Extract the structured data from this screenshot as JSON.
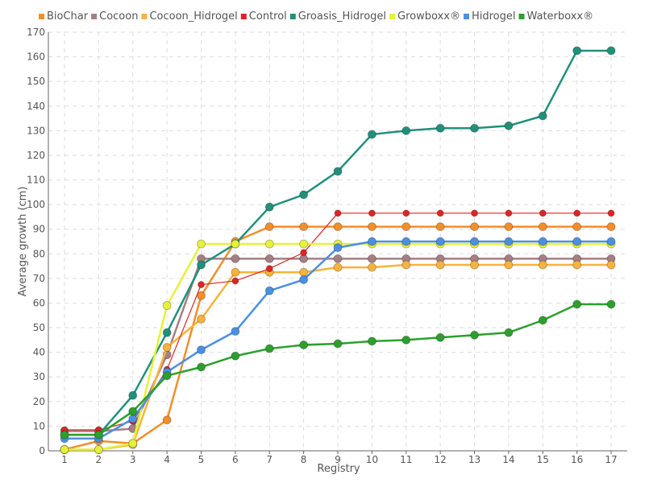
{
  "chart_data": {
    "type": "line",
    "title": "",
    "xlabel": "Registry",
    "ylabel": "Average growth (cm)",
    "x": [
      1,
      2,
      3,
      4,
      5,
      6,
      7,
      8,
      9,
      10,
      11,
      12,
      13,
      14,
      15,
      16,
      17
    ],
    "ylim": [
      0,
      170
    ],
    "ytick_step": 10,
    "grid": true,
    "legend_position": "top",
    "series": [
      {
        "name": "BioChar",
        "color": "#f28e2b",
        "values": [
          0.5,
          4,
          3,
          12.5,
          63,
          85,
          91,
          91,
          91,
          91,
          91,
          91,
          91,
          91,
          91,
          91,
          91
        ]
      },
      {
        "name": "Cocoon",
        "color": "#a57f84",
        "values": [
          8,
          8,
          9,
          39,
          78,
          78,
          78,
          78,
          78,
          78,
          78,
          78,
          78,
          78,
          78,
          78,
          78
        ]
      },
      {
        "name": "Cocoon_Hidrogel",
        "color": "#f7b33a",
        "values": [
          0.5,
          0.5,
          2.5,
          42,
          53.5,
          72.5,
          72.5,
          72.5,
          74.5,
          74.5,
          75.5,
          75.5,
          75.5,
          75.5,
          75.5,
          75.5,
          75.5
        ]
      },
      {
        "name": "Control",
        "color": "#e02424",
        "values": [
          8.5,
          8.5,
          12,
          33,
          67.5,
          69,
          74,
          80.5,
          96.5,
          96.5,
          96.5,
          96.5,
          96.5,
          96.5,
          96.5,
          96.5,
          96.5
        ]
      },
      {
        "name": "Groasis_Hidrogel",
        "color": "#21907b",
        "values": [
          6.5,
          6.5,
          22.5,
          48,
          75.5,
          84,
          99,
          104,
          113.5,
          128.5,
          130,
          131,
          131,
          132,
          136,
          162.5,
          162.5
        ]
      },
      {
        "name": "Growboxx®",
        "color": "#e6f23a",
        "values": [
          0.5,
          0.5,
          3,
          59,
          84,
          84,
          84,
          84,
          84,
          84,
          84,
          84,
          84,
          84,
          84,
          84,
          84
        ]
      },
      {
        "name": "Hidrogel",
        "color": "#4a90e2",
        "values": [
          5,
          5,
          13,
          32,
          41,
          48.5,
          65,
          69.5,
          82.5,
          85,
          85,
          85,
          85,
          85,
          85,
          85,
          85
        ]
      },
      {
        "name": "Waterboxx®",
        "color": "#2ca02c",
        "values": [
          6.5,
          6.5,
          16,
          30.5,
          34,
          38.5,
          41.5,
          43,
          43.5,
          44.5,
          45,
          46,
          47,
          48,
          53,
          59.5,
          59.5
        ]
      }
    ]
  }
}
